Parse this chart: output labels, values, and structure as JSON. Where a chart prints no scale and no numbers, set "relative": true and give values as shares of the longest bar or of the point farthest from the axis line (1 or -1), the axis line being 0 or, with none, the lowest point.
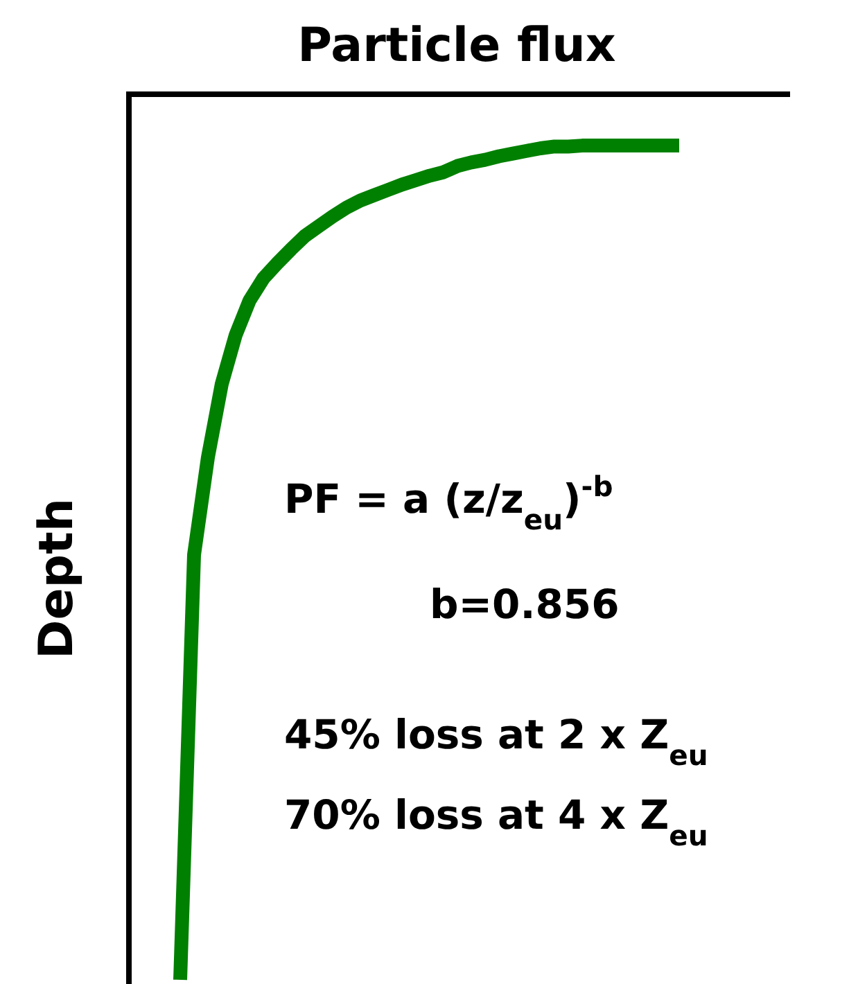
{
  "chart_data": {
    "type": "line",
    "relative": true,
    "xlabel": "Particle flux",
    "ylabel": "Depth",
    "categories": [
      null,
      null,
      null,
      null,
      null,
      null,
      null,
      null,
      null,
      null,
      null,
      null,
      null,
      null,
      null,
      null,
      null,
      null,
      null,
      null,
      null,
      null,
      null,
      null,
      null,
      null,
      null,
      null,
      null,
      null,
      null,
      null,
      null,
      null,
      null,
      null,
      null
    ],
    "series": [
      {
        "color": "#008000",
        "values": [
          -1,
          -0.52,
          -0.41,
          -0.327,
          -0.272,
          -0.233,
          -0.208,
          -0.191,
          -0.175,
          -0.16,
          -0.149,
          -0.138,
          -0.128,
          -0.12,
          -0.114,
          -0.108,
          -0.102,
          -0.097,
          -0.092,
          -0.088,
          -0.081,
          -0.077,
          -0.074,
          -0.07,
          -0.067,
          -0.064,
          -0.061,
          -0.059,
          -0.059,
          -0.058,
          -0.058,
          -0.058,
          -0.058,
          -0.058,
          -0.058,
          -0.058,
          -0.058
        ]
      }
    ],
    "annotations": [
      "PF = a (z/z$_{eu}$)$^{-b}$",
      "b=0.856",
      "45% loss at 2 x Z$_{eu}$",
      "70% loss at 4 x Z$_{eu}$"
    ],
    "line_style": "solid"
  }
}
